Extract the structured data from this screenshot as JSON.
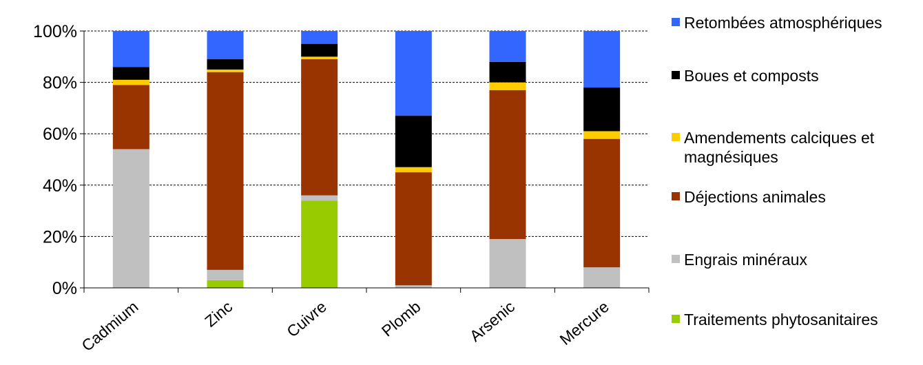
{
  "chart_data": {
    "type": "bar",
    "stacked": true,
    "percent": true,
    "categories": [
      "Cadmium",
      "Zinc",
      "Cuivre",
      "Plomb",
      "Arsenic",
      "Mercure"
    ],
    "series": [
      {
        "name": "Traitements phytosanitaires",
        "color": "#99cc00",
        "values": [
          0,
          3,
          34,
          0,
          0,
          0
        ]
      },
      {
        "name": "Engrais minéraux",
        "color": "#c0c0c0",
        "values": [
          54,
          4,
          2,
          1,
          19,
          8
        ]
      },
      {
        "name": "Déjections animales",
        "color": "#993300",
        "values": [
          25,
          77,
          53,
          44,
          58,
          50
        ]
      },
      {
        "name": "Amendements calciques et magnésiques",
        "color": "#ffcc00",
        "values": [
          2,
          1,
          1,
          2,
          3,
          3
        ]
      },
      {
        "name": "Boues et composts",
        "color": "#000000",
        "values": [
          5,
          4,
          5,
          20,
          8,
          17
        ]
      },
      {
        "name": "Retombées atmosphériques",
        "color": "#3366ff",
        "values": [
          14,
          11,
          5,
          33,
          12,
          22
        ]
      }
    ],
    "yticks": [
      "0%",
      "20%",
      "40%",
      "60%",
      "80%",
      "100%"
    ],
    "ylim": [
      0,
      100
    ],
    "grid": "horizontal dashed",
    "legend": "right",
    "legend_order": [
      5,
      4,
      3,
      2,
      1,
      0
    ]
  }
}
